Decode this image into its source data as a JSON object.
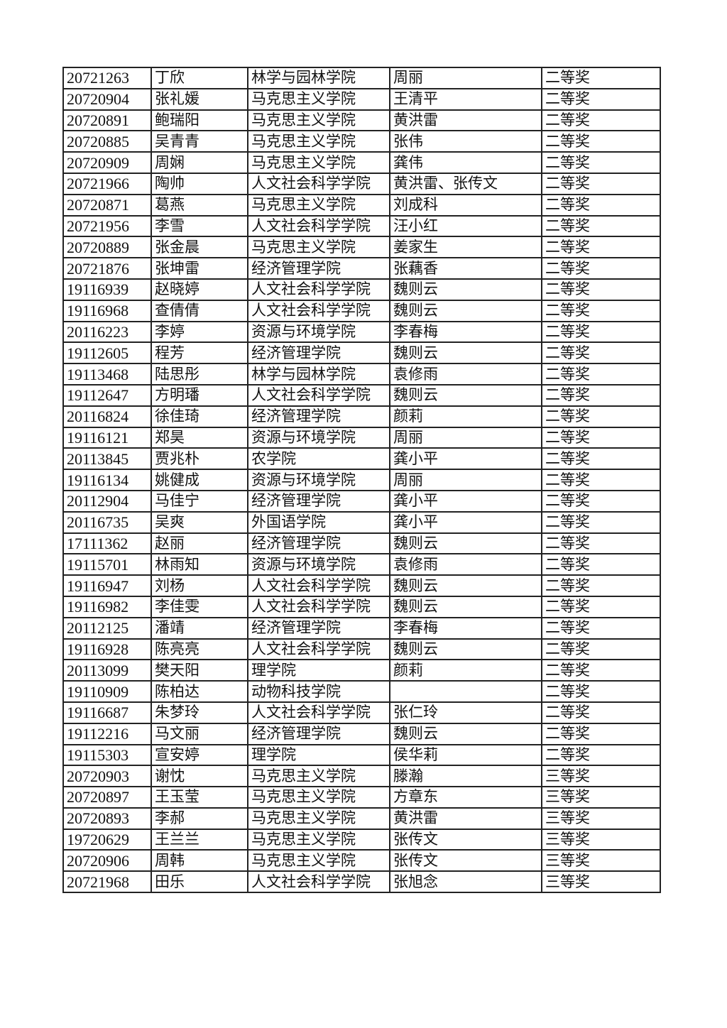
{
  "rows": [
    [
      "20721263",
      "丁欣",
      "林学与园林学院",
      "周丽",
      "二等奖"
    ],
    [
      "20720904",
      "张礼媛",
      "马克思主义学院",
      "王清平",
      "二等奖"
    ],
    [
      "20720891",
      "鲍瑞阳",
      "马克思主义学院",
      "黄洪雷",
      "二等奖"
    ],
    [
      "20720885",
      "吴青青",
      "马克思主义学院",
      "张伟",
      "二等奖"
    ],
    [
      "20720909",
      "周娴",
      "马克思主义学院",
      "龚伟",
      "二等奖"
    ],
    [
      "20721966",
      "陶帅",
      "人文社会科学学院",
      "黄洪雷、张传文",
      "二等奖"
    ],
    [
      "20720871",
      "葛燕",
      "马克思主义学院",
      "刘成科",
      "二等奖"
    ],
    [
      "20721956",
      "李雪",
      "人文社会科学学院",
      "汪小红",
      "二等奖"
    ],
    [
      "20720889",
      "张金晨",
      "马克思主义学院",
      "姜家生",
      "二等奖"
    ],
    [
      "20721876",
      "张坤雷",
      "经济管理学院",
      "张藕香",
      "二等奖"
    ],
    [
      "19116939",
      "赵晓婷",
      "人文社会科学学院",
      "魏则云",
      "二等奖"
    ],
    [
      "19116968",
      "查倩倩",
      "人文社会科学学院",
      "魏则云",
      "二等奖"
    ],
    [
      "20116223",
      "李婷",
      "资源与环境学院",
      "李春梅",
      "二等奖"
    ],
    [
      "19112605",
      "程芳",
      "经济管理学院",
      "魏则云",
      "二等奖"
    ],
    [
      "19113468",
      "陆思彤",
      "林学与园林学院",
      "袁修雨",
      "二等奖"
    ],
    [
      "19112647",
      "方明璠",
      "人文社会科学学院",
      "魏则云",
      "二等奖"
    ],
    [
      "20116824",
      "徐佳琦",
      "经济管理学院",
      "颜莉",
      "二等奖"
    ],
    [
      "19116121",
      "郑昊",
      "资源与环境学院",
      "周丽",
      "二等奖"
    ],
    [
      "20113845",
      "贾兆朴",
      "农学院",
      "龚小平",
      "二等奖"
    ],
    [
      "19116134",
      "姚健成",
      "资源与环境学院",
      "周丽",
      "二等奖"
    ],
    [
      "20112904",
      "马佳宁",
      "经济管理学院",
      "龚小平",
      "二等奖"
    ],
    [
      "20116735",
      "吴爽",
      "外国语学院",
      "龚小平",
      "二等奖"
    ],
    [
      "17111362",
      "赵丽",
      "经济管理学院",
      "魏则云",
      "二等奖"
    ],
    [
      "19115701",
      "林雨知",
      "资源与环境学院",
      "袁修雨",
      "二等奖"
    ],
    [
      "19116947",
      "刘杨",
      "人文社会科学学院",
      "魏则云",
      "二等奖"
    ],
    [
      "19116982",
      "李佳雯",
      "人文社会科学学院",
      "魏则云",
      "二等奖"
    ],
    [
      "20112125",
      "潘靖",
      "经济管理学院",
      "李春梅",
      "二等奖"
    ],
    [
      "19116928",
      "陈亮亮",
      "人文社会科学学院",
      "魏则云",
      "二等奖"
    ],
    [
      "20113099",
      "樊天阳",
      "理学院",
      "颜莉",
      "二等奖"
    ],
    [
      "19110909",
      "陈柏达",
      "动物科技学院",
      "",
      "二等奖"
    ],
    [
      "19116687",
      "朱梦玲",
      "人文社会科学学院",
      "张仁玲",
      "二等奖"
    ],
    [
      "19112216",
      "马文丽",
      "经济管理学院",
      "魏则云",
      "二等奖"
    ],
    [
      "19115303",
      "宣安婷",
      "理学院",
      "侯华莉",
      "二等奖"
    ],
    [
      "20720903",
      "谢忱",
      "马克思主义学院",
      "滕瀚",
      "三等奖"
    ],
    [
      "20720897",
      "王玉莹",
      "马克思主义学院",
      "方章东",
      "三等奖"
    ],
    [
      "20720893",
      "李郝",
      "马克思主义学院",
      "黄洪雷",
      "三等奖"
    ],
    [
      "19720629",
      "王兰兰",
      "马克思主义学院",
      "张传文",
      "三等奖"
    ],
    [
      "20720906",
      "周韩",
      "马克思主义学院",
      "张传文",
      "三等奖"
    ],
    [
      "20721968",
      "田乐",
      "人文社会科学学院",
      "张旭念",
      "三等奖"
    ]
  ]
}
